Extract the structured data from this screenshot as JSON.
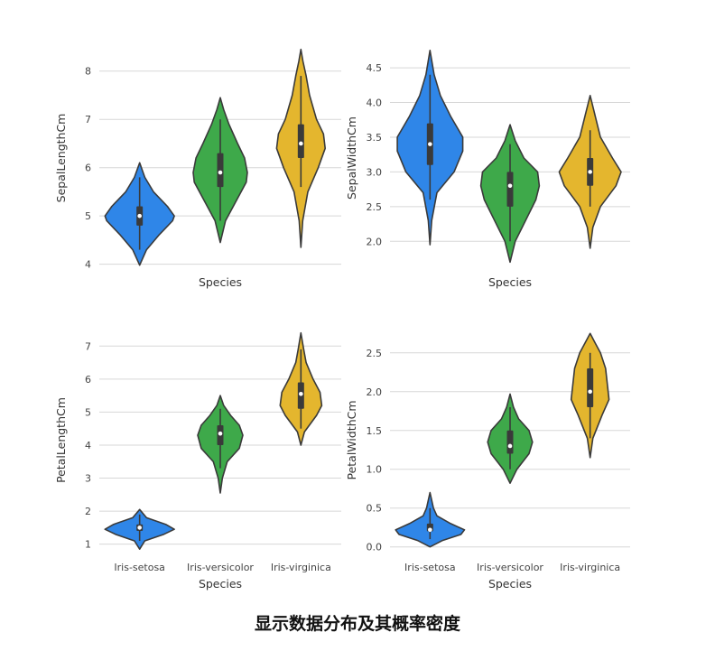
{
  "caption": "显示数据分布及其概率密度",
  "colors": {
    "setosa": "#2f86e8",
    "versicolor": "#3ea94a",
    "virginica": "#e4b62e",
    "outline": "#3a3a3a",
    "grid": "#d7d7d7"
  },
  "chart_data": [
    {
      "type": "violin",
      "xlabel": "Species",
      "ylabel": "SepalLengthCm",
      "ylim": [
        3.9,
        8.5
      ],
      "yticks": [
        4,
        5,
        6,
        7,
        8
      ],
      "grid": true,
      "categories": [
        "Iris-setosa",
        "Iris-versicolor",
        "Iris-virginica"
      ],
      "show_category_labels": false,
      "series": [
        {
          "category": "Iris-setosa",
          "min": 3.98,
          "max": 6.1,
          "q1": 4.8,
          "median": 5.0,
          "q3": 5.2,
          "whisker_low": 4.3,
          "whisker_high": 5.8,
          "density": [
            [
              3.98,
              0.0
            ],
            [
              4.3,
              0.2
            ],
            [
              4.6,
              0.55
            ],
            [
              4.9,
              0.95
            ],
            [
              5.0,
              1.0
            ],
            [
              5.2,
              0.8
            ],
            [
              5.5,
              0.4
            ],
            [
              5.8,
              0.15
            ],
            [
              6.1,
              0.0
            ]
          ]
        },
        {
          "category": "Iris-versicolor",
          "min": 4.45,
          "max": 7.45,
          "q1": 5.6,
          "median": 5.9,
          "q3": 6.3,
          "whisker_low": 4.9,
          "whisker_high": 7.0,
          "density": [
            [
              4.45,
              0.0
            ],
            [
              4.9,
              0.15
            ],
            [
              5.3,
              0.45
            ],
            [
              5.7,
              0.75
            ],
            [
              5.9,
              0.78
            ],
            [
              6.2,
              0.7
            ],
            [
              6.5,
              0.5
            ],
            [
              6.9,
              0.25
            ],
            [
              7.2,
              0.1
            ],
            [
              7.45,
              0.0
            ]
          ]
        },
        {
          "category": "Iris-virginica",
          "min": 4.35,
          "max": 8.45,
          "q1": 6.2,
          "median": 6.5,
          "q3": 6.9,
          "whisker_low": 5.6,
          "whisker_high": 7.9,
          "density": [
            [
              4.35,
              0.0
            ],
            [
              4.9,
              0.05
            ],
            [
              5.5,
              0.2
            ],
            [
              6.0,
              0.5
            ],
            [
              6.4,
              0.7
            ],
            [
              6.7,
              0.65
            ],
            [
              7.0,
              0.45
            ],
            [
              7.5,
              0.25
            ],
            [
              7.9,
              0.15
            ],
            [
              8.2,
              0.06
            ],
            [
              8.45,
              0.0
            ]
          ]
        }
      ]
    },
    {
      "type": "violin",
      "xlabel": "Species",
      "ylabel": "SepalWidthCm",
      "ylim": [
        1.6,
        4.8
      ],
      "yticks": [
        2.0,
        2.5,
        3.0,
        3.5,
        4.0,
        4.5
      ],
      "ytick_labels": [
        "2.0",
        "2.5",
        "3.0",
        "3.5",
        "4.0",
        "4.5"
      ],
      "grid": true,
      "categories": [
        "Iris-setosa",
        "Iris-versicolor",
        "Iris-virginica"
      ],
      "show_category_labels": false,
      "series": [
        {
          "category": "Iris-setosa",
          "min": 1.95,
          "max": 4.75,
          "q1": 3.1,
          "median": 3.4,
          "q3": 3.7,
          "whisker_low": 2.6,
          "whisker_high": 4.4,
          "density": [
            [
              1.95,
              0.0
            ],
            [
              2.3,
              0.05
            ],
            [
              2.7,
              0.2
            ],
            [
              3.0,
              0.7
            ],
            [
              3.3,
              0.95
            ],
            [
              3.5,
              0.95
            ],
            [
              3.8,
              0.6
            ],
            [
              4.1,
              0.3
            ],
            [
              4.4,
              0.12
            ],
            [
              4.75,
              0.0
            ]
          ]
        },
        {
          "category": "Iris-versicolor",
          "min": 1.7,
          "max": 3.68,
          "q1": 2.5,
          "median": 2.8,
          "q3": 3.0,
          "whisker_low": 2.0,
          "whisker_high": 3.4,
          "density": [
            [
              1.7,
              0.0
            ],
            [
              2.0,
              0.15
            ],
            [
              2.3,
              0.45
            ],
            [
              2.6,
              0.75
            ],
            [
              2.8,
              0.85
            ],
            [
              3.0,
              0.8
            ],
            [
              3.2,
              0.4
            ],
            [
              3.45,
              0.15
            ],
            [
              3.68,
              0.0
            ]
          ]
        },
        {
          "category": "Iris-virginica",
          "min": 1.9,
          "max": 4.1,
          "q1": 2.8,
          "median": 3.0,
          "q3": 3.2,
          "whisker_low": 2.5,
          "whisker_high": 3.6,
          "density": [
            [
              1.9,
              0.0
            ],
            [
              2.2,
              0.08
            ],
            [
              2.5,
              0.3
            ],
            [
              2.8,
              0.75
            ],
            [
              3.0,
              0.9
            ],
            [
              3.2,
              0.65
            ],
            [
              3.5,
              0.3
            ],
            [
              3.8,
              0.15
            ],
            [
              4.1,
              0.0
            ]
          ]
        }
      ]
    },
    {
      "type": "violin",
      "xlabel": "Species",
      "ylabel": "PetalLengthCm",
      "ylim": [
        0.8,
        7.5
      ],
      "yticks": [
        1,
        2,
        3,
        4,
        5,
        6,
        7
      ],
      "grid": true,
      "categories": [
        "Iris-setosa",
        "Iris-versicolor",
        "Iris-virginica"
      ],
      "show_category_labels": true,
      "series": [
        {
          "category": "Iris-setosa",
          "min": 0.85,
          "max": 2.05,
          "q1": 1.4,
          "median": 1.5,
          "q3": 1.6,
          "whisker_low": 1.1,
          "whisker_high": 1.9,
          "density": [
            [
              0.85,
              0.0
            ],
            [
              1.1,
              0.15
            ],
            [
              1.3,
              0.7
            ],
            [
              1.45,
              1.0
            ],
            [
              1.6,
              0.75
            ],
            [
              1.8,
              0.2
            ],
            [
              2.05,
              0.0
            ]
          ]
        },
        {
          "category": "Iris-versicolor",
          "min": 2.55,
          "max": 5.5,
          "q1": 4.0,
          "median": 4.35,
          "q3": 4.6,
          "whisker_low": 3.3,
          "whisker_high": 5.1,
          "density": [
            [
              2.55,
              0.0
            ],
            [
              3.0,
              0.06
            ],
            [
              3.5,
              0.2
            ],
            [
              3.9,
              0.55
            ],
            [
              4.3,
              0.65
            ],
            [
              4.6,
              0.55
            ],
            [
              4.9,
              0.3
            ],
            [
              5.2,
              0.1
            ],
            [
              5.5,
              0.0
            ]
          ]
        },
        {
          "category": "Iris-virginica",
          "min": 4.0,
          "max": 7.4,
          "q1": 5.1,
          "median": 5.55,
          "q3": 5.9,
          "whisker_low": 4.5,
          "whisker_high": 6.9,
          "density": [
            [
              4.0,
              0.0
            ],
            [
              4.4,
              0.1
            ],
            [
              4.9,
              0.45
            ],
            [
              5.2,
              0.6
            ],
            [
              5.6,
              0.55
            ],
            [
              6.0,
              0.35
            ],
            [
              6.5,
              0.15
            ],
            [
              6.9,
              0.08
            ],
            [
              7.4,
              0.0
            ]
          ]
        }
      ]
    },
    {
      "type": "violin",
      "xlabel": "Species",
      "ylabel": "PetalWidthCm",
      "ylim": [
        -0.05,
        2.8
      ],
      "yticks": [
        0.0,
        0.5,
        1.0,
        1.5,
        2.0,
        2.5
      ],
      "ytick_labels": [
        "0.0",
        "0.5",
        "1.0",
        "1.5",
        "2.0",
        "2.5"
      ],
      "grid": true,
      "categories": [
        "Iris-setosa",
        "Iris-versicolor",
        "Iris-virginica"
      ],
      "show_category_labels": true,
      "series": [
        {
          "category": "Iris-setosa",
          "min": 0.0,
          "max": 0.7,
          "q1": 0.2,
          "median": 0.22,
          "q3": 0.3,
          "whisker_low": 0.1,
          "whisker_high": 0.5,
          "density": [
            [
              0.0,
              0.0
            ],
            [
              0.08,
              0.35
            ],
            [
              0.16,
              0.9
            ],
            [
              0.22,
              1.0
            ],
            [
              0.3,
              0.6
            ],
            [
              0.4,
              0.2
            ],
            [
              0.5,
              0.1
            ],
            [
              0.6,
              0.05
            ],
            [
              0.7,
              0.0
            ]
          ]
        },
        {
          "category": "Iris-versicolor",
          "min": 0.82,
          "max": 1.97,
          "q1": 1.2,
          "median": 1.3,
          "q3": 1.5,
          "whisker_low": 1.0,
          "whisker_high": 1.8,
          "density": [
            [
              0.82,
              0.0
            ],
            [
              1.0,
              0.2
            ],
            [
              1.2,
              0.55
            ],
            [
              1.35,
              0.65
            ],
            [
              1.5,
              0.55
            ],
            [
              1.65,
              0.25
            ],
            [
              1.8,
              0.1
            ],
            [
              1.97,
              0.0
            ]
          ]
        },
        {
          "category": "Iris-virginica",
          "min": 1.15,
          "max": 2.75,
          "q1": 1.8,
          "median": 2.0,
          "q3": 2.3,
          "whisker_low": 1.4,
          "whisker_high": 2.5,
          "density": [
            [
              1.15,
              0.0
            ],
            [
              1.4,
              0.08
            ],
            [
              1.7,
              0.35
            ],
            [
              1.9,
              0.55
            ],
            [
              2.1,
              0.5
            ],
            [
              2.3,
              0.45
            ],
            [
              2.5,
              0.3
            ],
            [
              2.65,
              0.12
            ],
            [
              2.75,
              0.0
            ]
          ]
        }
      ]
    }
  ]
}
